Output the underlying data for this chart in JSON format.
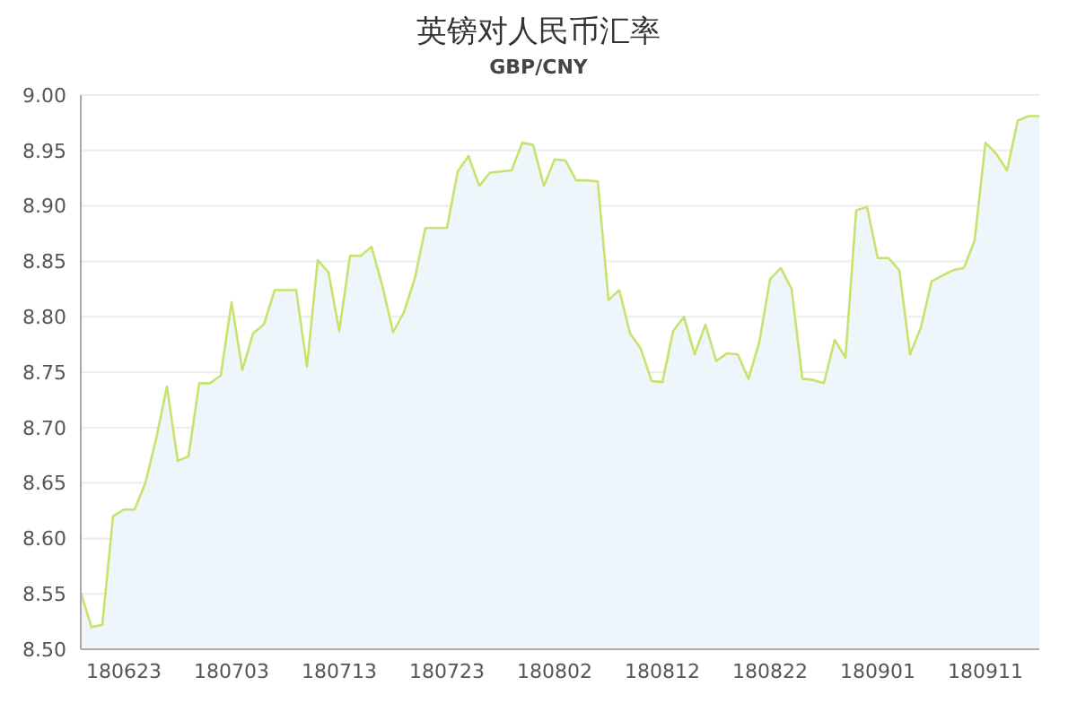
{
  "chart_data": {
    "type": "area",
    "title": "英镑对人民币汇率",
    "subtitle": "GBP/CNY",
    "categories": [
      null,
      null,
      null,
      null,
      "180623",
      null,
      null,
      null,
      null,
      null,
      null,
      null,
      null,
      null,
      "180703",
      null,
      null,
      null,
      null,
      null,
      null,
      null,
      null,
      null,
      "180713",
      null,
      null,
      null,
      null,
      null,
      null,
      null,
      null,
      null,
      "180723",
      null,
      null,
      null,
      null,
      null,
      null,
      null,
      null,
      null,
      "180802",
      null,
      null,
      null,
      null,
      null,
      null,
      null,
      null,
      null,
      "180812",
      null,
      null,
      null,
      null,
      null,
      null,
      null,
      null,
      null,
      "180822",
      null,
      null,
      null,
      null,
      null,
      null,
      null,
      null,
      null,
      "180901",
      null,
      null,
      null,
      null,
      null,
      null,
      null,
      null,
      null,
      "180911",
      null,
      null,
      null,
      null,
      null
    ],
    "series": [
      {
        "color": "#c8e26e",
        "values": [
          8.551,
          8.52,
          8.522,
          8.62,
          8.626,
          8.626,
          8.65,
          8.69,
          8.737,
          8.67,
          8.674,
          8.74,
          8.74,
          8.747,
          8.813,
          8.752,
          8.785,
          8.793,
          8.824,
          8.824,
          8.824,
          8.755,
          8.851,
          8.84,
          8.787,
          8.855,
          8.855,
          8.863,
          8.828,
          8.786,
          8.804,
          8.834,
          8.88,
          8.88,
          8.88,
          8.931,
          8.945,
          8.918,
          8.93,
          8.931,
          8.932,
          8.957,
          8.955,
          8.918,
          8.942,
          8.941,
          8.923,
          8.923,
          8.922,
          8.815,
          8.824,
          8.785,
          8.771,
          8.742,
          8.741,
          8.787,
          8.8,
          8.766,
          8.793,
          8.76,
          8.767,
          8.766,
          8.744,
          8.777,
          8.834,
          8.844,
          8.825,
          8.744,
          8.743,
          8.74,
          8.779,
          8.763,
          8.896,
          8.899,
          8.853,
          8.853,
          8.842,
          8.766,
          8.79,
          8.832,
          8.837,
          8.842,
          8.844,
          8.869,
          8.957,
          8.947,
          8.932,
          8.977,
          8.981,
          8.981
        ]
      }
    ],
    "ylim": [
      8.5,
      9.0
    ],
    "yticks": [
      {
        "value": 8.5,
        "label": "8.50"
      },
      {
        "value": 8.55,
        "label": "8.55"
      },
      {
        "value": 8.6,
        "label": "8.60"
      },
      {
        "value": 8.65,
        "label": "8.65"
      },
      {
        "value": 8.7,
        "label": "8.70"
      },
      {
        "value": 8.75,
        "label": "8.75"
      },
      {
        "value": 8.8,
        "label": "8.80"
      },
      {
        "value": 8.85,
        "label": "8.85"
      },
      {
        "value": 8.9,
        "label": "8.90"
      },
      {
        "value": 8.95,
        "label": "8.95"
      },
      {
        "value": 9.0,
        "label": "9.00"
      }
    ],
    "grid": "y",
    "legend": false
  }
}
